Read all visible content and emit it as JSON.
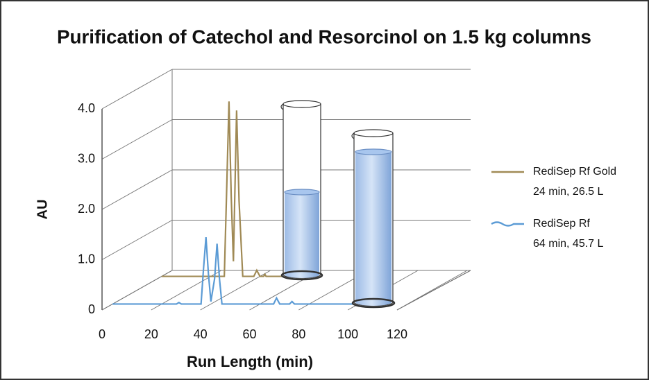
{
  "chart_data": {
    "type": "line",
    "title": "Purification of Catechol and Resorcinol on 1.5 kg columns",
    "x_label": "Run Length (min)",
    "y_label": "AU",
    "xlim": [
      0,
      120
    ],
    "ylim": [
      0,
      4
    ],
    "xticks": [
      0,
      20,
      40,
      60,
      80,
      100,
      120
    ],
    "yticks": [
      0,
      {
        "value": 1,
        "label": "1.0"
      },
      {
        "value": 2,
        "label": "2.0"
      },
      {
        "value": 3,
        "label": "3.0"
      },
      {
        "value": 4,
        "label": "4.0"
      }
    ],
    "grid": true,
    "series": [
      {
        "name": "RediSep Rf Gold",
        "detail": "24 min, 26.5 L",
        "color": "#a08a55",
        "x": [
          0,
          23,
          25.5,
          26.5,
          27.4,
          28.3,
          29.2,
          30.5,
          31.5,
          33,
          37.5,
          38.7,
          40,
          41.5,
          42,
          42.5,
          49
        ],
        "values": [
          0,
          0,
          0,
          1.8,
          3.48,
          1.6,
          0.3,
          3.3,
          1.5,
          0,
          0,
          0.12,
          0,
          0,
          0.04,
          0,
          0
        ]
      },
      {
        "name": "RediSep Rf",
        "detail": "64 min, 45.7 L",
        "color": "#5b9bd5",
        "x": [
          0,
          26,
          27,
          28,
          36,
          37,
          38,
          39,
          40,
          41.5,
          42.5,
          43.5,
          44.5,
          46,
          65.5,
          66.7,
          68,
          72,
          73,
          74,
          98
        ],
        "values": [
          0,
          0,
          0.03,
          0,
          0,
          0.7,
          1.33,
          0.6,
          0.05,
          0.5,
          1.2,
          0.5,
          0,
          0,
          0,
          0.12,
          0,
          0,
          0.05,
          0,
          0
        ]
      }
    ]
  }
}
